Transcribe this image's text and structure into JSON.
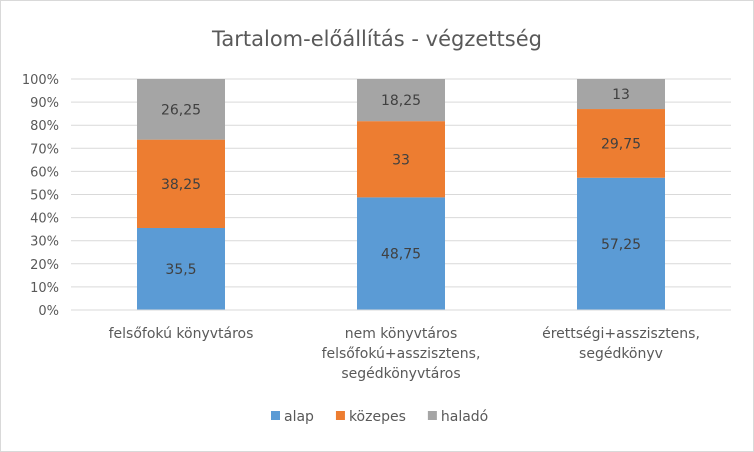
{
  "chart_data": {
    "type": "bar",
    "stacked": "percent",
    "title": "Tartalom-előállítás - végzettség",
    "xlabel": "",
    "ylabel": "",
    "ylim": [
      0,
      100
    ],
    "yticks": [
      "0%",
      "10%",
      "20%",
      "30%",
      "40%",
      "50%",
      "60%",
      "70%",
      "80%",
      "90%",
      "100%"
    ],
    "grid": true,
    "legend": "bottom",
    "categories": [
      [
        "felsőfokú könyvtáros"
      ],
      [
        "nem könyvtáros",
        "felsőfokú+asszisztens,",
        "segédkönyvtáros"
      ],
      [
        "érettségi+asszisztens,",
        "segédkönyv"
      ]
    ],
    "series": [
      {
        "name": "alap",
        "color": "#5b9bd5",
        "values": [
          35.5,
          48.75,
          57.25
        ],
        "labels": [
          "35,5",
          "48,75",
          "57,25"
        ]
      },
      {
        "name": "közepes",
        "color": "#ed7d31",
        "values": [
          38.25,
          33,
          29.75
        ],
        "labels": [
          "38,25",
          "33",
          "29,75"
        ]
      },
      {
        "name": "haladó",
        "color": "#a5a5a5",
        "values": [
          26.25,
          18.25,
          13
        ],
        "labels": [
          "26,25",
          "18,25",
          "13"
        ]
      }
    ]
  }
}
